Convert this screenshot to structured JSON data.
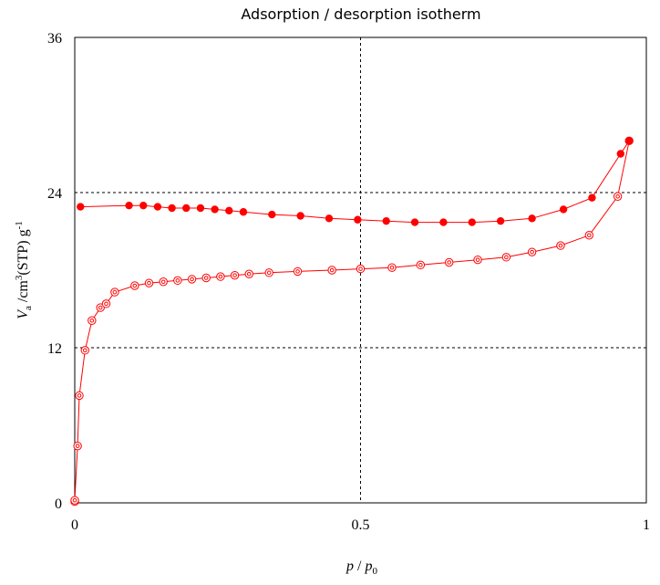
{
  "chart_data": {
    "type": "scatter",
    "title": "Adsorption / desorption isotherm",
    "xlabel": {
      "p": "p",
      "sep": " / ",
      "p0": "p",
      "p0_sub": "0"
    },
    "ylabel": {
      "v": "V",
      "v_sub": "a",
      "unit1": " /cm",
      "unit_sup": "3",
      "unit2": "(STP) g",
      "unit2_sup": "-1"
    },
    "xlim": [
      0,
      1
    ],
    "ylim": [
      0,
      36
    ],
    "x_ticks": [
      0,
      0.5,
      1
    ],
    "x_tick_labels": [
      "0",
      "0.5",
      "1"
    ],
    "y_ticks": [
      0,
      12,
      24,
      36
    ],
    "y_tick_labels": [
      "0",
      "12",
      "24",
      "36"
    ],
    "grid": {
      "x": [
        0.5
      ],
      "y": [
        12,
        24
      ],
      "style": "dashed"
    },
    "line_color": "#ff0000",
    "series": [
      {
        "marker": "open-circle",
        "x": [
          0.0,
          0.0,
          0.005,
          0.008,
          0.018,
          0.03,
          0.045,
          0.055,
          0.07,
          0.105,
          0.13,
          0.155,
          0.18,
          0.205,
          0.23,
          0.255,
          0.28,
          0.305,
          0.34,
          0.39,
          0.45,
          0.5,
          0.555,
          0.605,
          0.655,
          0.705,
          0.755,
          0.8,
          0.85,
          0.9,
          0.95,
          0.97
        ],
        "y": [
          0.1,
          0.2,
          4.4,
          8.3,
          11.8,
          14.1,
          15.1,
          15.4,
          16.3,
          16.8,
          17.0,
          17.1,
          17.2,
          17.3,
          17.4,
          17.5,
          17.6,
          17.7,
          17.8,
          17.9,
          18.0,
          18.1,
          18.2,
          18.4,
          18.6,
          18.8,
          19.0,
          19.4,
          19.9,
          20.7,
          23.7,
          28.0
        ]
      },
      {
        "marker": "filled-circle",
        "x": [
          0.97,
          0.955,
          0.905,
          0.855,
          0.8,
          0.745,
          0.695,
          0.645,
          0.595,
          0.545,
          0.495,
          0.445,
          0.395,
          0.345,
          0.295,
          0.27,
          0.245,
          0.22,
          0.195,
          0.17,
          0.145,
          0.12,
          0.095,
          0.01
        ],
        "y": [
          28.0,
          27.0,
          23.6,
          22.7,
          22.0,
          21.8,
          21.7,
          21.7,
          21.7,
          21.8,
          21.9,
          22.0,
          22.2,
          22.3,
          22.5,
          22.6,
          22.7,
          22.8,
          22.8,
          22.8,
          22.9,
          23.0,
          23.0,
          22.9
        ]
      }
    ]
  }
}
